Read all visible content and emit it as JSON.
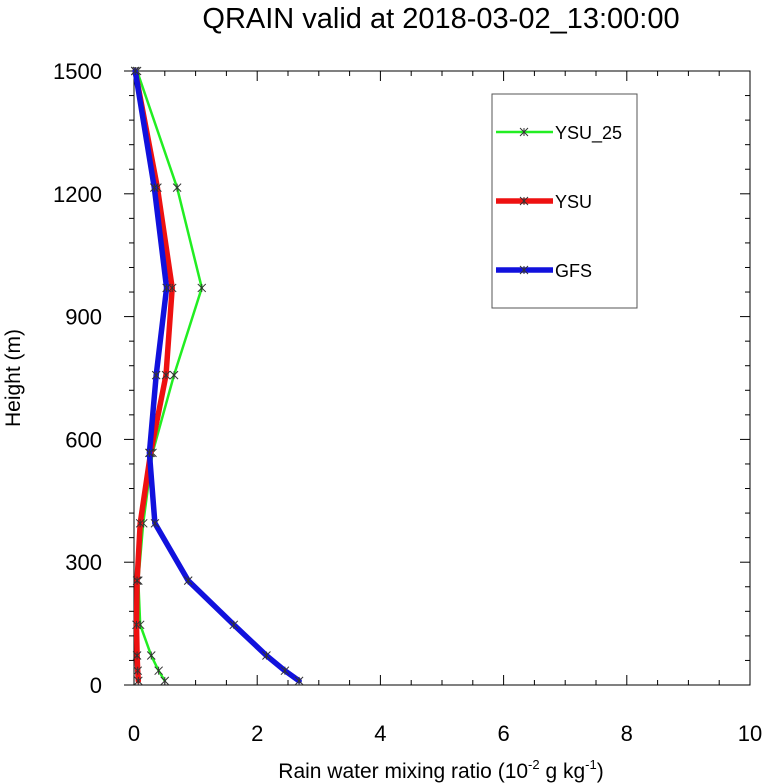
{
  "chart_data": {
    "type": "line",
    "title": "QRAIN valid at 2018-03-02_13:00:00",
    "xlabel_main": "Rain water mixing ratio (10",
    "xlabel_exp1": "-2",
    "xlabel_mid": " g kg",
    "xlabel_exp2": "-1",
    "xlabel_end": ")",
    "ylabel": "Height (m)",
    "xlim": [
      0,
      10
    ],
    "ylim": [
      0,
      1500
    ],
    "xticks": [
      0,
      2,
      4,
      6,
      8,
      10
    ],
    "yticks": [
      0,
      300,
      600,
      900,
      1200,
      1500
    ],
    "grid": false,
    "legend_position": "top-right",
    "series": [
      {
        "name": "YSU_25",
        "color": "#22ee22",
        "x": [
          0.5,
          0.4,
          0.28,
          0.1,
          0.07,
          0.15,
          0.3,
          0.65,
          1.1,
          0.7,
          0.05
        ],
        "y": [
          10,
          35,
          72,
          147,
          255,
          395,
          567,
          757,
          970,
          1215,
          1500
        ]
      },
      {
        "name": "YSU",
        "color": "#ee1111",
        "x": [
          0.07,
          0.06,
          0.05,
          0.04,
          0.05,
          0.1,
          0.27,
          0.52,
          0.62,
          0.38,
          0.02
        ],
        "y": [
          10,
          35,
          72,
          147,
          255,
          395,
          567,
          757,
          970,
          1215,
          1500
        ]
      },
      {
        "name": "GFS",
        "color": "#1111dd",
        "x": [
          2.68,
          2.45,
          2.15,
          1.62,
          0.88,
          0.34,
          0.25,
          0.36,
          0.53,
          0.33,
          0.02
        ],
        "y": [
          10,
          35,
          72,
          147,
          255,
          395,
          567,
          757,
          970,
          1215,
          1500
        ]
      }
    ]
  }
}
